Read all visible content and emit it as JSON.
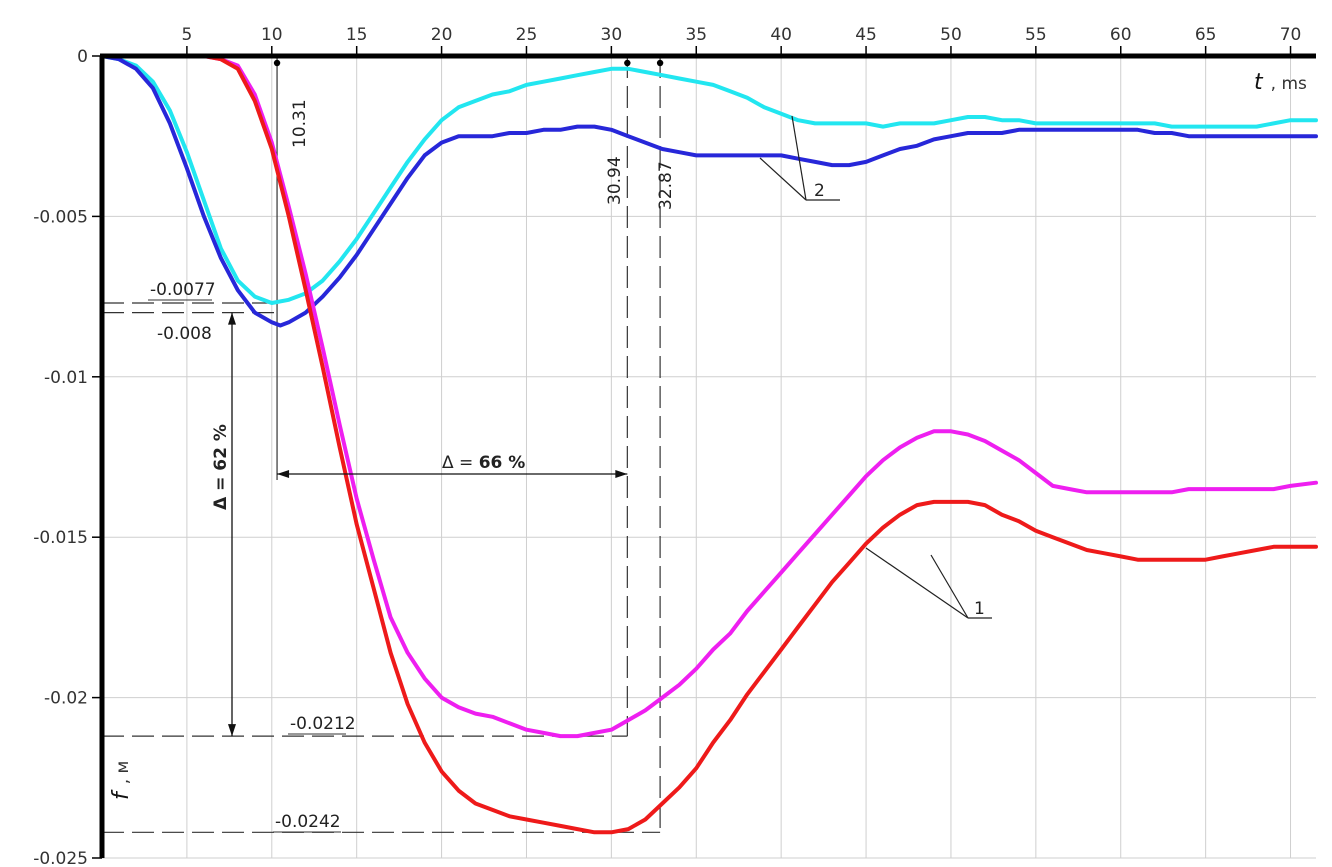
{
  "chart_data": {
    "type": "line",
    "xlabel": "t , ms",
    "ylabel": "f , м",
    "x_ticks": [
      "5",
      "10",
      "15",
      "20",
      "25",
      "30",
      "35",
      "40",
      "45",
      "50",
      "55",
      "60",
      "65",
      "70"
    ],
    "y_ticks": [
      "0",
      "-0.005",
      "-0.01",
      "-0.015",
      "-0.02",
      "-0.025"
    ],
    "xlim": [
      0,
      71.5
    ],
    "ylim": [
      -0.025,
      0
    ],
    "grid": true,
    "colors": {
      "cyan": "#22e6f0",
      "blue": "#2727d9",
      "magenta": "#ee1ff0",
      "red": "#ee1a1a"
    },
    "series": [
      {
        "group": "2",
        "color": "cyan",
        "points": [
          [
            0,
            0
          ],
          [
            1,
            -0.0001
          ],
          [
            2,
            -0.0003
          ],
          [
            3,
            -0.0008
          ],
          [
            4,
            -0.0017
          ],
          [
            5,
            -0.003
          ],
          [
            6,
            -0.0045
          ],
          [
            7,
            -0.006
          ],
          [
            8,
            -0.007
          ],
          [
            9,
            -0.0075
          ],
          [
            10,
            -0.0077
          ],
          [
            11,
            -0.0076
          ],
          [
            12,
            -0.0074
          ],
          [
            13,
            -0.007
          ],
          [
            14,
            -0.0064
          ],
          [
            15,
            -0.0057
          ],
          [
            16,
            -0.0049
          ],
          [
            17,
            -0.0041
          ],
          [
            18,
            -0.0033
          ],
          [
            19,
            -0.0026
          ],
          [
            20,
            -0.002
          ],
          [
            21,
            -0.0016
          ],
          [
            22,
            -0.0014
          ],
          [
            23,
            -0.0012
          ],
          [
            24,
            -0.0011
          ],
          [
            25,
            -0.0009
          ],
          [
            26,
            -0.0008
          ],
          [
            27,
            -0.0007
          ],
          [
            28,
            -0.0006
          ],
          [
            29,
            -0.0005
          ],
          [
            30,
            -0.0004
          ],
          [
            31,
            -0.0004
          ],
          [
            32,
            -0.0005
          ],
          [
            33,
            -0.0006
          ],
          [
            34,
            -0.0007
          ],
          [
            35,
            -0.0008
          ],
          [
            36,
            -0.0009
          ],
          [
            37,
            -0.0011
          ],
          [
            38,
            -0.0013
          ],
          [
            39,
            -0.0016
          ],
          [
            40,
            -0.0018
          ],
          [
            41,
            -0.002
          ],
          [
            42,
            -0.0021
          ],
          [
            43,
            -0.0021
          ],
          [
            44,
            -0.0021
          ],
          [
            45,
            -0.0021
          ],
          [
            46,
            -0.0022
          ],
          [
            47,
            -0.0021
          ],
          [
            48,
            -0.0021
          ],
          [
            49,
            -0.0021
          ],
          [
            50,
            -0.002
          ],
          [
            51,
            -0.0019
          ],
          [
            52,
            -0.0019
          ],
          [
            53,
            -0.002
          ],
          [
            54,
            -0.002
          ],
          [
            55,
            -0.0021
          ],
          [
            56,
            -0.0021
          ],
          [
            57,
            -0.0021
          ],
          [
            58,
            -0.0021
          ],
          [
            59,
            -0.0021
          ],
          [
            60,
            -0.0021
          ],
          [
            61,
            -0.0021
          ],
          [
            62,
            -0.0021
          ],
          [
            63,
            -0.0022
          ],
          [
            64,
            -0.0022
          ],
          [
            65,
            -0.0022
          ],
          [
            66,
            -0.0022
          ],
          [
            67,
            -0.0022
          ],
          [
            68,
            -0.0022
          ],
          [
            69,
            -0.0021
          ],
          [
            70,
            -0.002
          ],
          [
            71.5,
            -0.002
          ]
        ]
      },
      {
        "group": "2",
        "color": "blue",
        "points": [
          [
            0,
            0
          ],
          [
            1,
            -0.0001
          ],
          [
            2,
            -0.0004
          ],
          [
            3,
            -0.001
          ],
          [
            4,
            -0.0021
          ],
          [
            5,
            -0.0035
          ],
          [
            6,
            -0.005
          ],
          [
            7,
            -0.0063
          ],
          [
            8,
            -0.0073
          ],
          [
            9,
            -0.008
          ],
          [
            10,
            -0.0083
          ],
          [
            10.5,
            -0.0084
          ],
          [
            11,
            -0.0083
          ],
          [
            12,
            -0.008
          ],
          [
            13,
            -0.0075
          ],
          [
            14,
            -0.0069
          ],
          [
            15,
            -0.0062
          ],
          [
            16,
            -0.0054
          ],
          [
            17,
            -0.0046
          ],
          [
            18,
            -0.0038
          ],
          [
            19,
            -0.0031
          ],
          [
            20,
            -0.0027
          ],
          [
            21,
            -0.0025
          ],
          [
            22,
            -0.0025
          ],
          [
            23,
            -0.0025
          ],
          [
            24,
            -0.0024
          ],
          [
            25,
            -0.0024
          ],
          [
            26,
            -0.0023
          ],
          [
            27,
            -0.0023
          ],
          [
            28,
            -0.0022
          ],
          [
            29,
            -0.0022
          ],
          [
            30,
            -0.0023
          ],
          [
            31,
            -0.0025
          ],
          [
            32,
            -0.0027
          ],
          [
            33,
            -0.0029
          ],
          [
            34,
            -0.003
          ],
          [
            35,
            -0.0031
          ],
          [
            36,
            -0.0031
          ],
          [
            37,
            -0.0031
          ],
          [
            38,
            -0.0031
          ],
          [
            39,
            -0.0031
          ],
          [
            40,
            -0.0031
          ],
          [
            41,
            -0.0032
          ],
          [
            42,
            -0.0033
          ],
          [
            43,
            -0.0034
          ],
          [
            44,
            -0.0034
          ],
          [
            45,
            -0.0033
          ],
          [
            46,
            -0.0031
          ],
          [
            47,
            -0.0029
          ],
          [
            48,
            -0.0028
          ],
          [
            49,
            -0.0026
          ],
          [
            50,
            -0.0025
          ],
          [
            51,
            -0.0024
          ],
          [
            52,
            -0.0024
          ],
          [
            53,
            -0.0024
          ],
          [
            54,
            -0.0023
          ],
          [
            55,
            -0.0023
          ],
          [
            56,
            -0.0023
          ],
          [
            57,
            -0.0023
          ],
          [
            58,
            -0.0023
          ],
          [
            59,
            -0.0023
          ],
          [
            60,
            -0.0023
          ],
          [
            61,
            -0.0023
          ],
          [
            62,
            -0.0024
          ],
          [
            63,
            -0.0024
          ],
          [
            64,
            -0.0025
          ],
          [
            65,
            -0.0025
          ],
          [
            66,
            -0.0025
          ],
          [
            67,
            -0.0025
          ],
          [
            68,
            -0.0025
          ],
          [
            69,
            -0.0025
          ],
          [
            70,
            -0.0025
          ],
          [
            71.5,
            -0.0025
          ]
        ]
      },
      {
        "group": "1",
        "color": "magenta",
        "points": [
          [
            0,
            0
          ],
          [
            2,
            0
          ],
          [
            4,
            0
          ],
          [
            6,
            0
          ],
          [
            7,
            -0.0001
          ],
          [
            8,
            -0.0003
          ],
          [
            9,
            -0.0012
          ],
          [
            10,
            -0.0027
          ],
          [
            11,
            -0.0047
          ],
          [
            12,
            -0.0068
          ],
          [
            13,
            -0.0091
          ],
          [
            14,
            -0.0115
          ],
          [
            15,
            -0.0138
          ],
          [
            16,
            -0.0157
          ],
          [
            17,
            -0.0175
          ],
          [
            18,
            -0.0186
          ],
          [
            19,
            -0.0194
          ],
          [
            20,
            -0.02
          ],
          [
            21,
            -0.0203
          ],
          [
            22,
            -0.0205
          ],
          [
            23,
            -0.0206
          ],
          [
            24,
            -0.0208
          ],
          [
            25,
            -0.021
          ],
          [
            26,
            -0.0211
          ],
          [
            27,
            -0.0212
          ],
          [
            28,
            -0.0212
          ],
          [
            29,
            -0.0211
          ],
          [
            30,
            -0.021
          ],
          [
            31,
            -0.0207
          ],
          [
            32,
            -0.0204
          ],
          [
            33,
            -0.02
          ],
          [
            34,
            -0.0196
          ],
          [
            35,
            -0.0191
          ],
          [
            36,
            -0.0185
          ],
          [
            37,
            -0.018
          ],
          [
            38,
            -0.0173
          ],
          [
            39,
            -0.0167
          ],
          [
            40,
            -0.0161
          ],
          [
            41,
            -0.0155
          ],
          [
            42,
            -0.0149
          ],
          [
            43,
            -0.0143
          ],
          [
            44,
            -0.0137
          ],
          [
            45,
            -0.0131
          ],
          [
            46,
            -0.0126
          ],
          [
            47,
            -0.0122
          ],
          [
            48,
            -0.0119
          ],
          [
            49,
            -0.0117
          ],
          [
            50,
            -0.0117
          ],
          [
            51,
            -0.0118
          ],
          [
            52,
            -0.012
          ],
          [
            53,
            -0.0123
          ],
          [
            54,
            -0.0126
          ],
          [
            55,
            -0.013
          ],
          [
            56,
            -0.0134
          ],
          [
            57,
            -0.0135
          ],
          [
            58,
            -0.0136
          ],
          [
            59,
            -0.0136
          ],
          [
            60,
            -0.0136
          ],
          [
            61,
            -0.0136
          ],
          [
            62,
            -0.0136
          ],
          [
            63,
            -0.0136
          ],
          [
            64,
            -0.0135
          ],
          [
            65,
            -0.0135
          ],
          [
            66,
            -0.0135
          ],
          [
            67,
            -0.0135
          ],
          [
            68,
            -0.0135
          ],
          [
            69,
            -0.0135
          ],
          [
            70,
            -0.0134
          ],
          [
            71.5,
            -0.0133
          ]
        ]
      },
      {
        "group": "1",
        "color": "red",
        "points": [
          [
            0,
            0
          ],
          [
            2,
            0
          ],
          [
            4,
            0
          ],
          [
            6,
            0
          ],
          [
            7,
            -0.0001
          ],
          [
            8,
            -0.0004
          ],
          [
            9,
            -0.0014
          ],
          [
            10,
            -0.0029
          ],
          [
            11,
            -0.005
          ],
          [
            12,
            -0.0073
          ],
          [
            13,
            -0.0097
          ],
          [
            14,
            -0.0122
          ],
          [
            15,
            -0.0146
          ],
          [
            16,
            -0.0166
          ],
          [
            17,
            -0.0186
          ],
          [
            18,
            -0.0202
          ],
          [
            19,
            -0.0214
          ],
          [
            20,
            -0.0223
          ],
          [
            21,
            -0.0229
          ],
          [
            22,
            -0.0233
          ],
          [
            23,
            -0.0235
          ],
          [
            24,
            -0.0237
          ],
          [
            25,
            -0.0238
          ],
          [
            26,
            -0.0239
          ],
          [
            27,
            -0.024
          ],
          [
            28,
            -0.0241
          ],
          [
            29,
            -0.0242
          ],
          [
            30,
            -0.0242
          ],
          [
            31,
            -0.0241
          ],
          [
            32,
            -0.0238
          ],
          [
            33,
            -0.0233
          ],
          [
            34,
            -0.0228
          ],
          [
            35,
            -0.0222
          ],
          [
            36,
            -0.0214
          ],
          [
            37,
            -0.0207
          ],
          [
            38,
            -0.0199
          ],
          [
            39,
            -0.0192
          ],
          [
            40,
            -0.0185
          ],
          [
            41,
            -0.0178
          ],
          [
            42,
            -0.0171
          ],
          [
            43,
            -0.0164
          ],
          [
            44,
            -0.0158
          ],
          [
            45,
            -0.0152
          ],
          [
            46,
            -0.0147
          ],
          [
            47,
            -0.0143
          ],
          [
            48,
            -0.014
          ],
          [
            49,
            -0.0139
          ],
          [
            50,
            -0.0139
          ],
          [
            51,
            -0.0139
          ],
          [
            52,
            -0.014
          ],
          [
            53,
            -0.0143
          ],
          [
            54,
            -0.0145
          ],
          [
            55,
            -0.0148
          ],
          [
            56,
            -0.015
          ],
          [
            57,
            -0.0152
          ],
          [
            58,
            -0.0154
          ],
          [
            59,
            -0.0155
          ],
          [
            60,
            -0.0156
          ],
          [
            61,
            -0.0157
          ],
          [
            62,
            -0.0157
          ],
          [
            63,
            -0.0157
          ],
          [
            64,
            -0.0157
          ],
          [
            65,
            -0.0157
          ],
          [
            66,
            -0.0156
          ],
          [
            67,
            -0.0155
          ],
          [
            68,
            -0.0154
          ],
          [
            69,
            -0.0153
          ],
          [
            70,
            -0.0153
          ],
          [
            71.5,
            -0.0153
          ]
        ]
      }
    ]
  },
  "annotations": {
    "y_0077": "-0.0077",
    "y_008": "-0.008",
    "y_0212": "-0.0212",
    "y_0242": "-0.0242",
    "t_1031": "10.31",
    "t_3094": "30.94",
    "t_3287": "32.87",
    "delta_v": "Δ = 62 %",
    "delta_h_prefix": "Δ = ",
    "delta_h_value": "66 %",
    "label_1": "1",
    "label_2": "2",
    "x_axis_symbol": "t",
    "x_axis_unit": ", ms",
    "y_axis_symbol": "f",
    "y_axis_unit": ", м"
  }
}
